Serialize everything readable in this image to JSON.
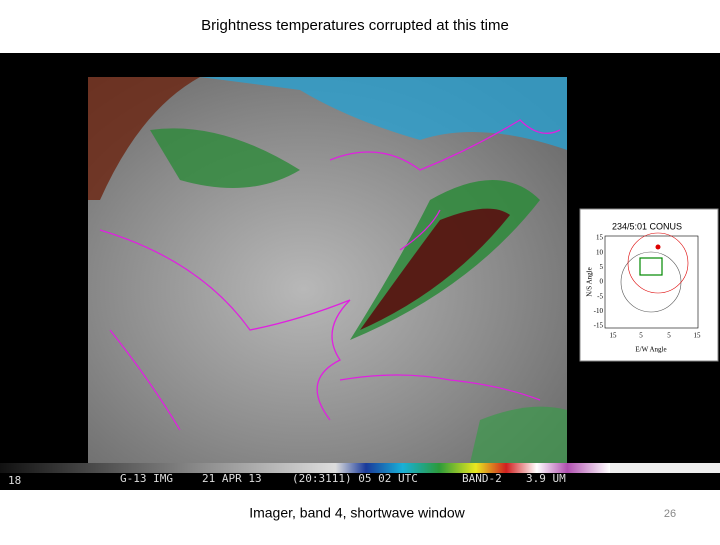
{
  "slide": {
    "title": "Brightness temperatures corrupted at this time",
    "caption": "Imager, band 4, shortwave window",
    "page_number": "26"
  },
  "image": {
    "frame": "18",
    "satellite": "G-13 IMG",
    "date": "21 APR 13",
    "time": "(20:3111) 05 02 UTC",
    "band": "BAND-2",
    "wavelength": "3.9 UM"
  },
  "inset": {
    "title": "234/5:01 CONUS",
    "y_label": "N/S Angle",
    "x_label": "E/W Angle",
    "y_ticks": [
      "15",
      "10",
      "5",
      "0",
      "-5",
      "-10",
      "-15"
    ],
    "x_ticks": [
      "15",
      "5",
      "5",
      "15"
    ]
  }
}
